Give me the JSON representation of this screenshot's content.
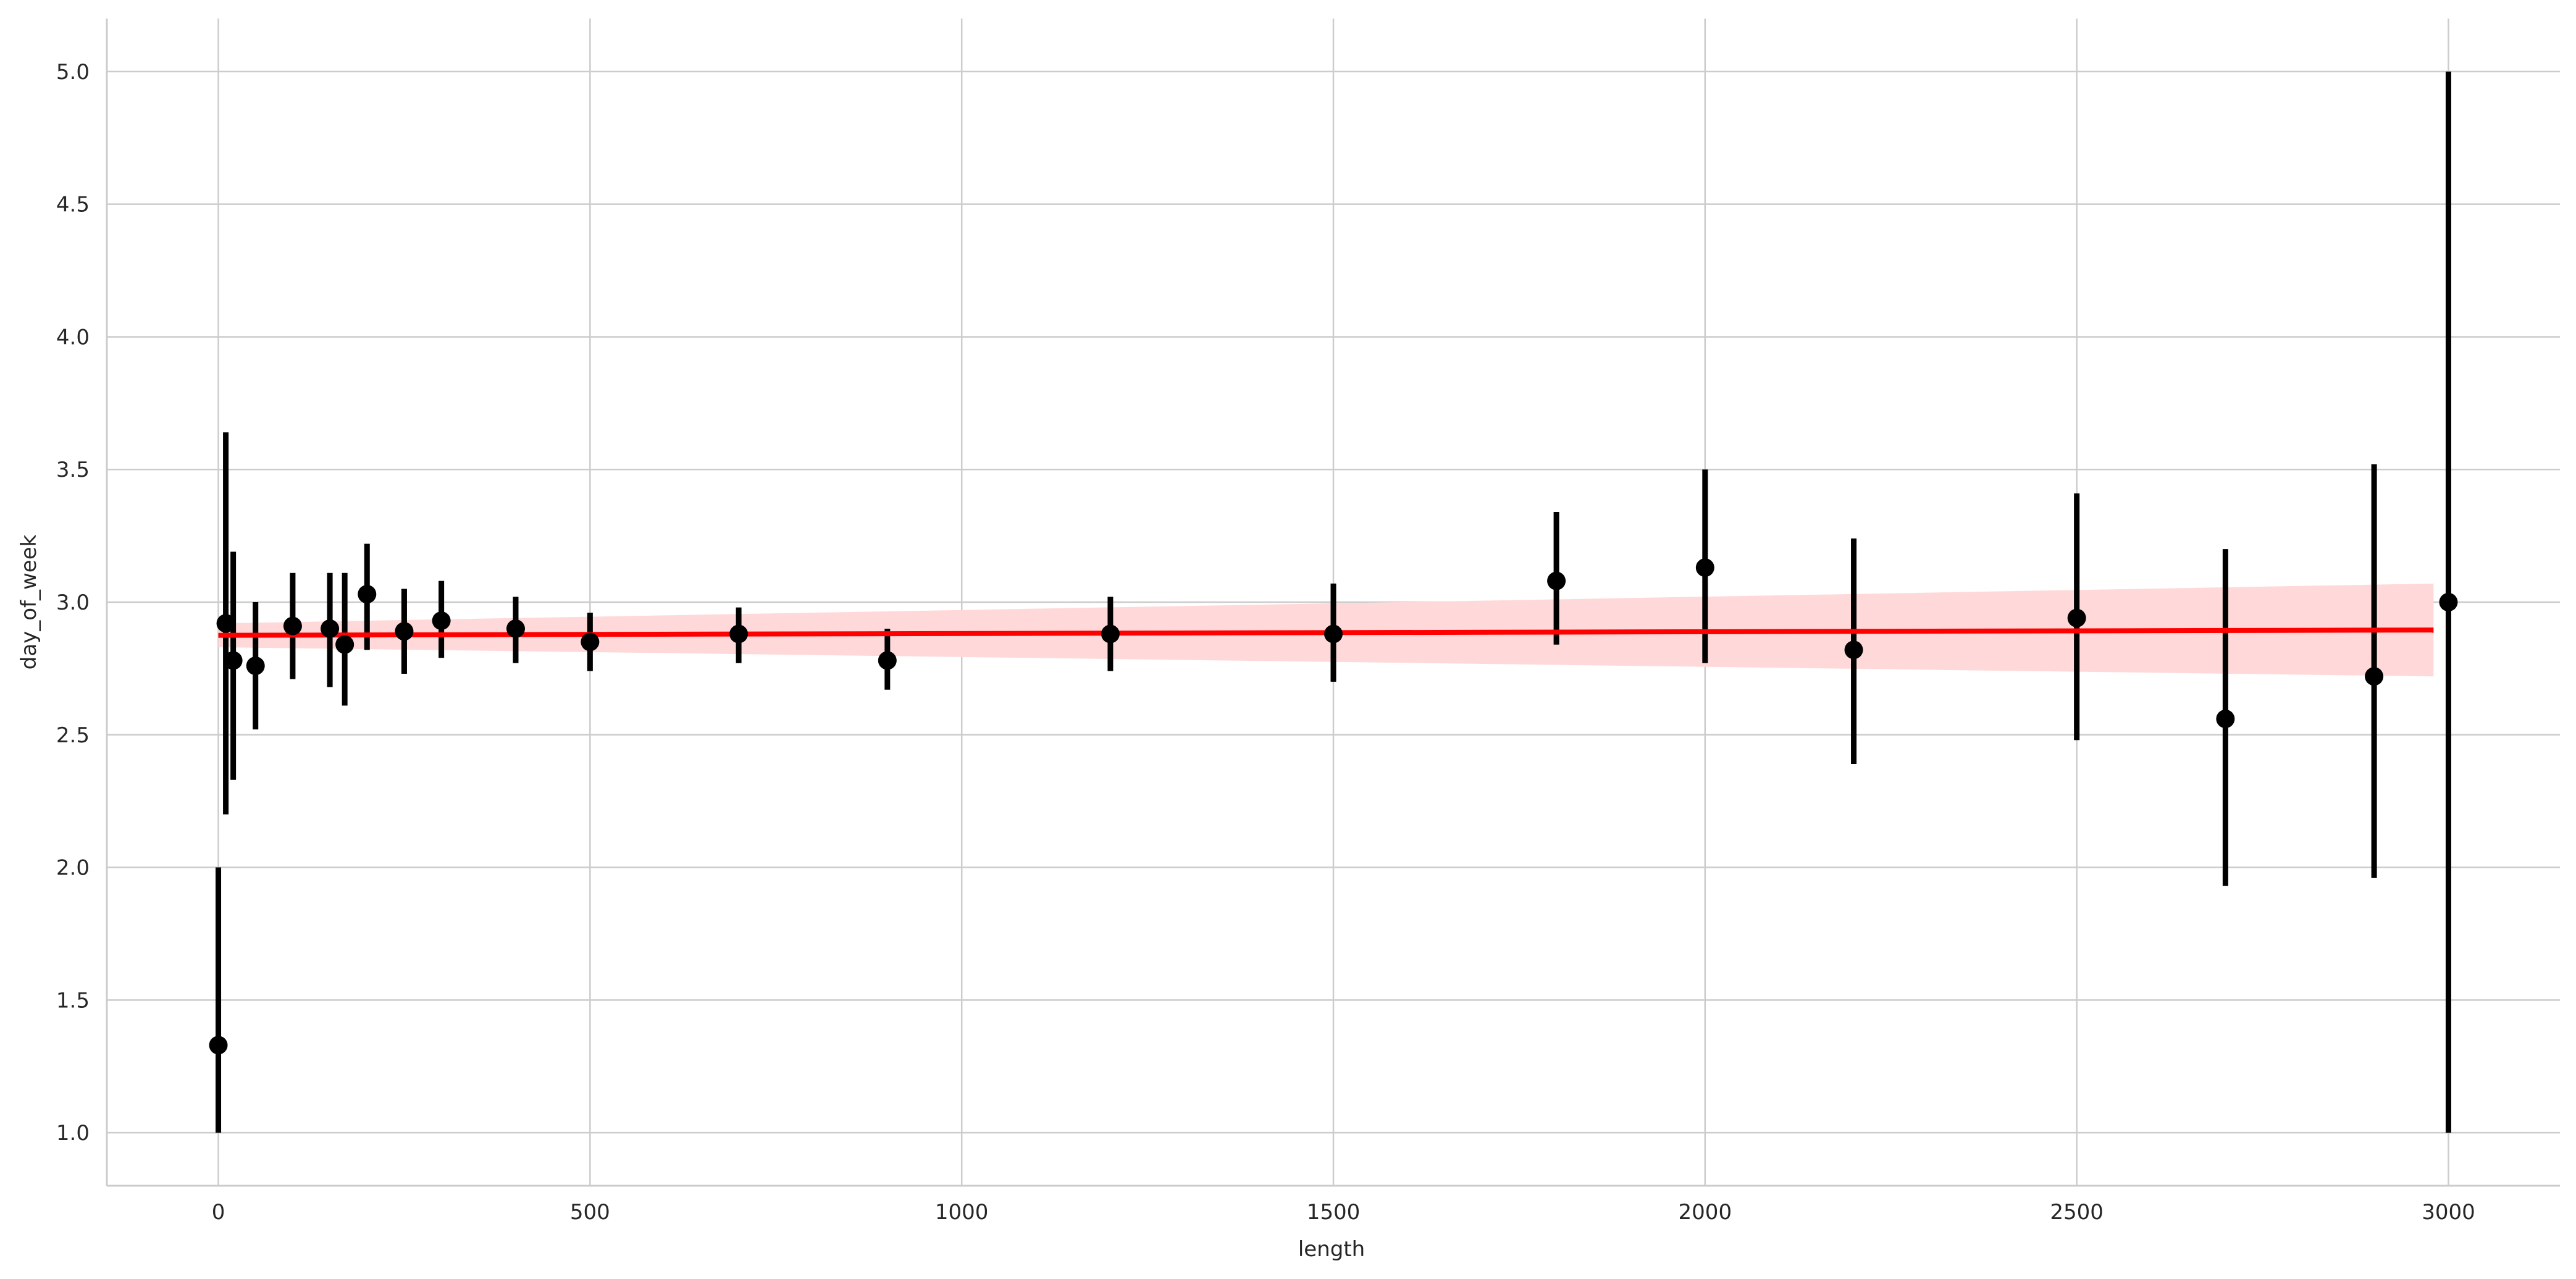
{
  "chart_data": {
    "type": "scatter",
    "title": "",
    "xlabel": "length",
    "ylabel": "day_of_week",
    "xlim": [
      -150,
      3150
    ],
    "ylim": [
      0.8,
      5.2
    ],
    "xticks": [
      0,
      500,
      1000,
      1500,
      2000,
      2500,
      3000
    ],
    "xtick_labels": [
      "0",
      "500",
      "1000",
      "1500",
      "2000",
      "2500",
      "3000"
    ],
    "yticks": [
      1.0,
      1.5,
      2.0,
      2.5,
      3.0,
      3.5,
      4.0,
      4.5,
      5.0
    ],
    "ytick_labels": [
      "1.0",
      "1.5",
      "2.0",
      "2.5",
      "3.0",
      "3.5",
      "4.0",
      "4.5",
      "5.0"
    ],
    "grid": true,
    "legend": "none",
    "points": [
      {
        "x": 0,
        "y": 1.33,
        "lo": 1.0,
        "hi": 2.0
      },
      {
        "x": 10,
        "y": 2.92,
        "lo": 2.2,
        "hi": 3.64
      },
      {
        "x": 20,
        "y": 2.78,
        "lo": 2.33,
        "hi": 3.19
      },
      {
        "x": 50,
        "y": 2.76,
        "lo": 2.52,
        "hi": 3.0
      },
      {
        "x": 100,
        "y": 2.91,
        "lo": 2.71,
        "hi": 3.11
      },
      {
        "x": 150,
        "y": 2.9,
        "lo": 2.68,
        "hi": 3.11
      },
      {
        "x": 170,
        "y": 2.84,
        "lo": 2.61,
        "hi": 3.11
      },
      {
        "x": 200,
        "y": 3.03,
        "lo": 2.82,
        "hi": 3.22
      },
      {
        "x": 250,
        "y": 2.89,
        "lo": 2.73,
        "hi": 3.05
      },
      {
        "x": 300,
        "y": 2.93,
        "lo": 2.79,
        "hi": 3.08
      },
      {
        "x": 400,
        "y": 2.9,
        "lo": 2.77,
        "hi": 3.02
      },
      {
        "x": 500,
        "y": 2.85,
        "lo": 2.74,
        "hi": 2.96
      },
      {
        "x": 700,
        "y": 2.88,
        "lo": 2.77,
        "hi": 2.98
      },
      {
        "x": 900,
        "y": 2.78,
        "lo": 2.67,
        "hi": 2.9
      },
      {
        "x": 1200,
        "y": 2.88,
        "lo": 2.74,
        "hi": 3.02
      },
      {
        "x": 1500,
        "y": 2.88,
        "lo": 2.7,
        "hi": 3.07
      },
      {
        "x": 1800,
        "y": 3.08,
        "lo": 2.84,
        "hi": 3.34
      },
      {
        "x": 2000,
        "y": 3.13,
        "lo": 2.77,
        "hi": 3.5
      },
      {
        "x": 2200,
        "y": 2.82,
        "lo": 2.39,
        "hi": 3.24
      },
      {
        "x": 2500,
        "y": 2.94,
        "lo": 2.48,
        "hi": 3.41
      },
      {
        "x": 2700,
        "y": 2.56,
        "lo": 1.93,
        "hi": 3.2
      },
      {
        "x": 2900,
        "y": 2.72,
        "lo": 1.96,
        "hi": 3.52
      },
      {
        "x": 3000,
        "y": 3.0,
        "lo": 1.0,
        "hi": 5.0
      }
    ],
    "regression": {
      "x": [
        0,
        2980
      ],
      "y": [
        2.875,
        2.895
      ],
      "ci_lower": [
        2.83,
        2.72
      ],
      "ci_upper": [
        2.92,
        3.07
      ],
      "color": "#ff0000",
      "band_color": "#ffd9d9"
    },
    "point_color": "#000000",
    "grid_color": "#cccccc",
    "axis_color": "#cccccc"
  }
}
